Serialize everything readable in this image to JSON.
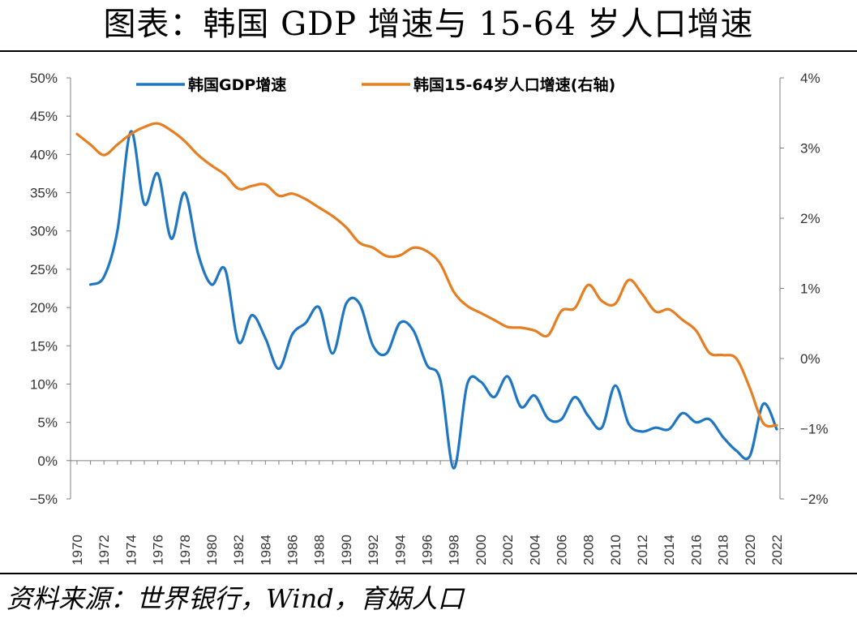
{
  "title": "图表：韩国 GDP 增速与 15-64 岁人口增速",
  "source": "资料来源：世界银行，Wind，育娲人口",
  "colors": {
    "gdp": "#1f77c4",
    "pop": "#e67e22",
    "axis": "#808080"
  },
  "chart_data": {
    "type": "line",
    "x": [
      1970,
      1971,
      1972,
      1973,
      1974,
      1975,
      1976,
      1977,
      1978,
      1979,
      1980,
      1981,
      1982,
      1983,
      1984,
      1985,
      1986,
      1987,
      1988,
      1989,
      1990,
      1991,
      1992,
      1993,
      1994,
      1995,
      1996,
      1997,
      1998,
      1999,
      2000,
      2001,
      2002,
      2003,
      2004,
      2005,
      2006,
      2007,
      2008,
      2009,
      2010,
      2011,
      2012,
      2013,
      2014,
      2015,
      2016,
      2017,
      2018,
      2019,
      2020,
      2021,
      2022
    ],
    "x_ticks": [
      "1970",
      "1972",
      "1974",
      "1976",
      "1978",
      "1980",
      "1982",
      "1984",
      "1986",
      "1988",
      "1990",
      "1992",
      "1994",
      "1996",
      "1998",
      "2000",
      "2002",
      "2004",
      "2006",
      "2008",
      "2010",
      "2012",
      "2014",
      "2016",
      "2018",
      "2020",
      "2022"
    ],
    "left_axis": {
      "min": -5,
      "max": 50,
      "ticks": [
        "50%",
        "45%",
        "40%",
        "35%",
        "30%",
        "25%",
        "20%",
        "15%",
        "10%",
        "5%",
        "0%",
        "−5%"
      ]
    },
    "right_axis": {
      "min": -2,
      "max": 4,
      "ticks": [
        "4%",
        "3%",
        "2%",
        "1%",
        "0%",
        "−1%",
        "−2%"
      ]
    },
    "series": [
      {
        "name": "韩国GDP增速",
        "axis": "left",
        "values": [
          null,
          23,
          24,
          30,
          43,
          33.5,
          37.5,
          29,
          35,
          27,
          23,
          25,
          15.5,
          19,
          16,
          12,
          16.5,
          18,
          20,
          14,
          20.5,
          20.5,
          15,
          14,
          18,
          17,
          12.5,
          10.5,
          -1,
          10,
          10.3,
          8.3,
          11,
          7,
          8.5,
          5.5,
          5.4,
          8.3,
          5.8,
          4.3,
          9.8,
          4.8,
          3.8,
          4.3,
          4.1,
          6.2,
          5,
          5.4,
          3.1,
          1.3,
          0.6,
          7.4,
          4.1
        ]
      },
      {
        "name": "韩国15-64岁人口增速(右轴)",
        "axis": "right",
        "values": [
          3.2,
          3.05,
          2.9,
          3.05,
          3.2,
          3.3,
          3.35,
          3.25,
          3.1,
          2.9,
          2.75,
          2.62,
          2.42,
          2.46,
          2.48,
          2.32,
          2.35,
          2.27,
          2.15,
          2.03,
          1.87,
          1.65,
          1.58,
          1.46,
          1.47,
          1.58,
          1.53,
          1.35,
          0.95,
          0.75,
          0.65,
          0.55,
          0.45,
          0.44,
          0.4,
          0.33,
          0.68,
          0.72,
          1.05,
          0.82,
          0.78,
          1.12,
          0.92,
          0.67,
          0.7,
          0.55,
          0.4,
          0.08,
          0.05,
          0.0,
          -0.42,
          -0.92,
          -0.95
        ]
      }
    ]
  }
}
